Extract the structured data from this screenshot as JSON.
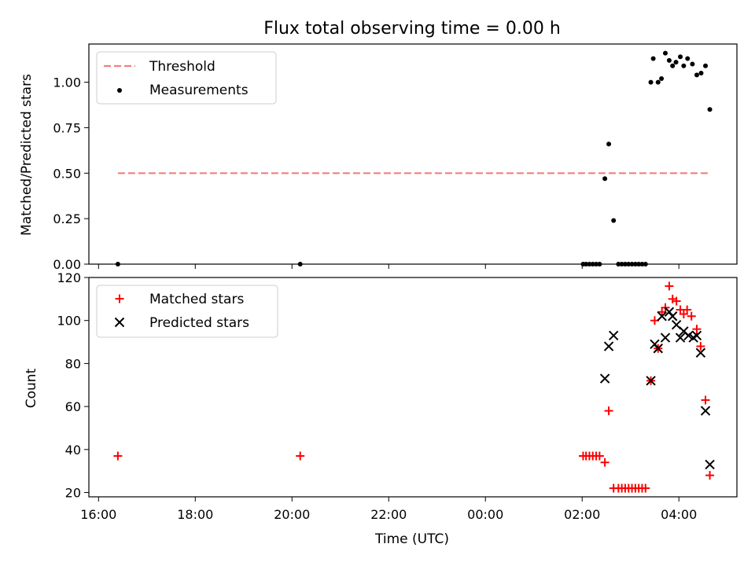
{
  "chart_data": [
    {
      "type": "scatter",
      "title": "Flux total observing time = 0.00 h",
      "ylabel": "Matched/Predicted stars",
      "xlabel": "",
      "xlim": [
        15.8,
        29.2
      ],
      "ylim": [
        0,
        1.21
      ],
      "yticks": [
        0.0,
        0.25,
        0.5,
        0.75,
        1.0
      ],
      "ytick_labels": [
        "0.00",
        "0.25",
        "0.50",
        "0.75",
        "1.00"
      ],
      "legend_position": "upper-left",
      "colors": {
        "threshold": "#f08080",
        "measurements": "#000000"
      },
      "threshold": {
        "name": "Threshold",
        "y": 0.5,
        "x_start": 16.4,
        "x_end": 28.65
      },
      "series": [
        {
          "name": "Measurements",
          "points": [
            [
              16.4,
              0.0
            ],
            [
              20.17,
              0.0
            ],
            [
              26.02,
              0.0
            ],
            [
              26.08,
              0.0
            ],
            [
              26.15,
              0.0
            ],
            [
              26.22,
              0.0
            ],
            [
              26.29,
              0.0
            ],
            [
              26.36,
              0.0
            ],
            [
              26.47,
              0.47
            ],
            [
              26.55,
              0.66
            ],
            [
              26.65,
              0.24
            ],
            [
              26.75,
              0.0
            ],
            [
              26.82,
              0.0
            ],
            [
              26.89,
              0.0
            ],
            [
              26.96,
              0.0
            ],
            [
              27.03,
              0.0
            ],
            [
              27.1,
              0.0
            ],
            [
              27.17,
              0.0
            ],
            [
              27.24,
              0.0
            ],
            [
              27.31,
              0.0
            ],
            [
              27.42,
              1.0
            ],
            [
              27.47,
              1.13
            ],
            [
              27.57,
              1.0
            ],
            [
              27.64,
              1.02
            ],
            [
              27.72,
              1.16
            ],
            [
              27.8,
              1.12
            ],
            [
              27.87,
              1.09
            ],
            [
              27.94,
              1.11
            ],
            [
              28.03,
              1.14
            ],
            [
              28.1,
              1.09
            ],
            [
              28.18,
              1.13
            ],
            [
              28.28,
              1.1
            ],
            [
              28.37,
              1.04
            ],
            [
              28.46,
              1.05
            ],
            [
              28.55,
              1.09
            ],
            [
              28.64,
              0.85
            ]
          ]
        }
      ]
    },
    {
      "type": "scatter",
      "title": "",
      "ylabel": "Count",
      "xlabel": "Time (UTC)",
      "xlim": [
        15.8,
        29.2
      ],
      "ylim": [
        18,
        120
      ],
      "yticks": [
        20,
        40,
        60,
        80,
        100,
        120
      ],
      "ytick_labels": [
        "20",
        "40",
        "60",
        "80",
        "100",
        "120"
      ],
      "xticks": [
        16,
        18,
        20,
        22,
        24,
        26,
        28
      ],
      "xtick_labels": [
        "16:00",
        "18:00",
        "20:00",
        "22:00",
        "00:00",
        "02:00",
        "04:00"
      ],
      "legend_position": "upper-left",
      "colors": {
        "matched": "#ff0000",
        "predicted": "#000000"
      },
      "series": [
        {
          "name": "Matched stars",
          "marker": "+",
          "points": [
            [
              16.4,
              37
            ],
            [
              20.17,
              37
            ],
            [
              26.02,
              37
            ],
            [
              26.08,
              37
            ],
            [
              26.15,
              37
            ],
            [
              26.22,
              37
            ],
            [
              26.29,
              37
            ],
            [
              26.36,
              37
            ],
            [
              26.47,
              34
            ],
            [
              26.55,
              58
            ],
            [
              26.65,
              22
            ],
            [
              26.75,
              22
            ],
            [
              26.82,
              22
            ],
            [
              26.89,
              22
            ],
            [
              26.96,
              22
            ],
            [
              27.03,
              22
            ],
            [
              27.1,
              22
            ],
            [
              27.17,
              22
            ],
            [
              27.24,
              22
            ],
            [
              27.31,
              22
            ],
            [
              27.42,
              72
            ],
            [
              27.5,
              100
            ],
            [
              27.57,
              87
            ],
            [
              27.65,
              104
            ],
            [
              27.72,
              106
            ],
            [
              27.8,
              116
            ],
            [
              27.87,
              110
            ],
            [
              27.95,
              109
            ],
            [
              28.03,
              105
            ],
            [
              28.1,
              103
            ],
            [
              28.17,
              105
            ],
            [
              28.26,
              102
            ],
            [
              28.37,
              96
            ],
            [
              28.45,
              88
            ],
            [
              28.55,
              63
            ],
            [
              28.64,
              28
            ]
          ]
        },
        {
          "name": "Predicted stars",
          "marker": "x",
          "points": [
            [
              26.47,
              73
            ],
            [
              26.55,
              88
            ],
            [
              26.65,
              93
            ],
            [
              27.42,
              72
            ],
            [
              27.5,
              89
            ],
            [
              27.57,
              87
            ],
            [
              27.65,
              102
            ],
            [
              27.72,
              92
            ],
            [
              27.8,
              104
            ],
            [
              27.87,
              102
            ],
            [
              27.95,
              98
            ],
            [
              28.03,
              92
            ],
            [
              28.1,
              95
            ],
            [
              28.2,
              93
            ],
            [
              28.3,
              92
            ],
            [
              28.37,
              93
            ],
            [
              28.45,
              85
            ],
            [
              28.55,
              58
            ],
            [
              28.64,
              33
            ]
          ]
        }
      ]
    }
  ]
}
